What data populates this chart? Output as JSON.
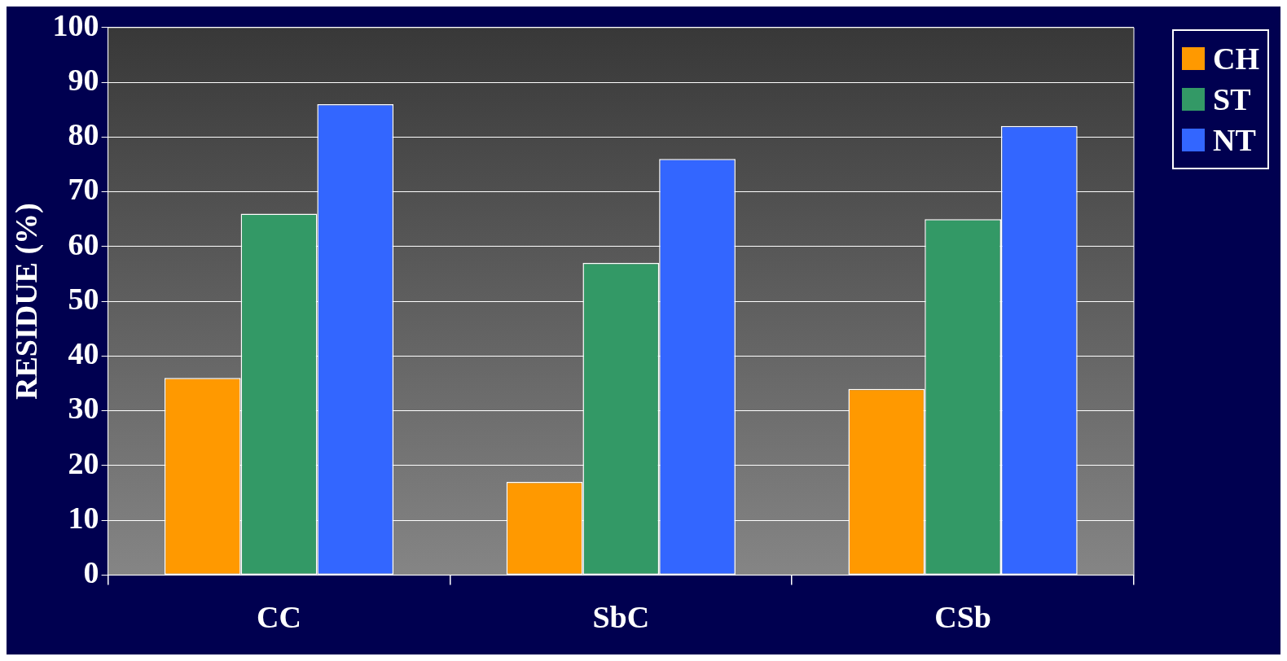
{
  "chart_data": {
    "type": "bar",
    "ylabel": "RESIDUE (%)",
    "categories": [
      "CC",
      "SbC",
      "CSb"
    ],
    "series": [
      {
        "name": "CH",
        "color": "#ff9900",
        "values": [
          36,
          17,
          34
        ]
      },
      {
        "name": "ST",
        "color": "#339966",
        "values": [
          66,
          57,
          65
        ]
      },
      {
        "name": "NT",
        "color": "#3366ff",
        "values": [
          86,
          76,
          82
        ]
      }
    ],
    "ylim": [
      0,
      100
    ],
    "yticks": [
      0,
      10,
      20,
      30,
      40,
      50,
      60,
      70,
      80,
      90,
      100
    ],
    "grid": "y",
    "legend": "top right"
  }
}
